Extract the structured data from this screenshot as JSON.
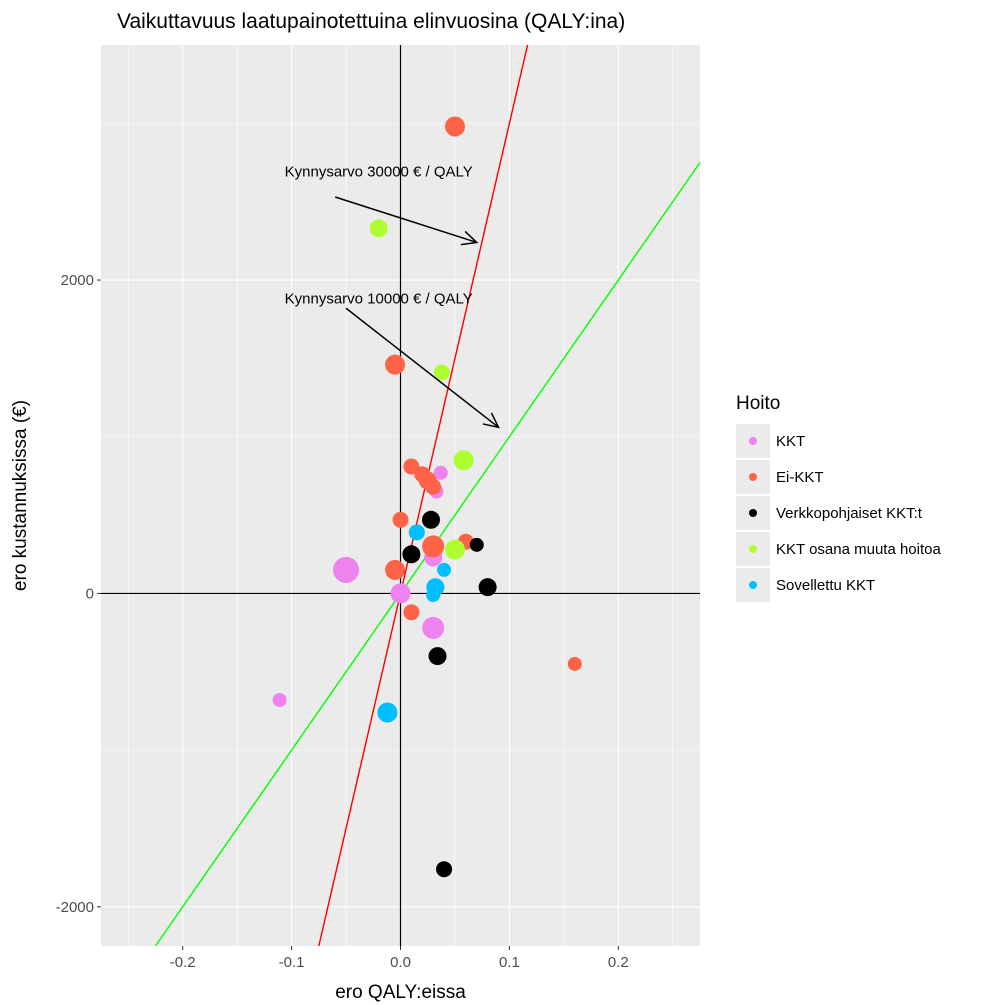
{
  "chart_data": {
    "type": "scatter",
    "title": "Vaikuttavuus laatupainotettuina elinvuosina (QALY:ina)",
    "xlabel": "ero QALY:eissa",
    "ylabel": "ero kustannuksissa (€)",
    "xlim": [
      -0.275,
      0.275
    ],
    "ylim": [
      -2250,
      3500
    ],
    "x_ticks": [
      -0.2,
      -0.1,
      0.0,
      0.1,
      0.2
    ],
    "x_tick_labels": [
      "-0.2",
      "-0.1",
      "0.0",
      "0.1",
      "0.2"
    ],
    "y_ticks": [
      -2000,
      0,
      2000
    ],
    "y_tick_labels": [
      "-2000",
      "0",
      "2000"
    ],
    "grid": true,
    "legend_position": "right",
    "background": "#ebebeb",
    "legend_title": "Hoito",
    "series": [
      {
        "name": "KKT",
        "color": "#ee82ee",
        "points": [
          {
            "x": -0.111,
            "y": -680,
            "size": 7
          },
          {
            "x": -0.05,
            "y": 150,
            "size": 13
          },
          {
            "x": 0.0,
            "y": 0,
            "size": 10
          },
          {
            "x": 0.03,
            "y": -220,
            "size": 11
          },
          {
            "x": 0.03,
            "y": 230,
            "size": 9
          },
          {
            "x": 0.037,
            "y": 770,
            "size": 7
          },
          {
            "x": 0.033,
            "y": 650,
            "size": 7
          }
        ]
      },
      {
        "name": "Ei-KKT",
        "color": "#ff6347",
        "points": [
          {
            "x": 0.05,
            "y": 2980,
            "size": 10
          },
          {
            "x": -0.005,
            "y": 1460,
            "size": 10
          },
          {
            "x": 0.01,
            "y": 810,
            "size": 8
          },
          {
            "x": 0.02,
            "y": 760,
            "size": 8
          },
          {
            "x": 0.025,
            "y": 720,
            "size": 9
          },
          {
            "x": 0.03,
            "y": 680,
            "size": 8
          },
          {
            "x": 0.0,
            "y": 470,
            "size": 8
          },
          {
            "x": -0.005,
            "y": 150,
            "size": 10
          },
          {
            "x": 0.03,
            "y": 300,
            "size": 11
          },
          {
            "x": 0.06,
            "y": 330,
            "size": 8
          },
          {
            "x": 0.01,
            "y": -120,
            "size": 8
          },
          {
            "x": 0.16,
            "y": -450,
            "size": 7
          }
        ]
      },
      {
        "name": "Verkkopohjaiset KKT:t",
        "color": "#000000",
        "points": [
          {
            "x": 0.028,
            "y": 470,
            "size": 9
          },
          {
            "x": 0.07,
            "y": 310,
            "size": 7
          },
          {
            "x": 0.01,
            "y": 250,
            "size": 9
          },
          {
            "x": 0.08,
            "y": 40,
            "size": 9
          },
          {
            "x": 0.034,
            "y": -400,
            "size": 9
          },
          {
            "x": 0.04,
            "y": -1760,
            "size": 8
          }
        ]
      },
      {
        "name": "KKT osana muuta hoitoa",
        "color": "#adff2f",
        "points": [
          {
            "x": -0.02,
            "y": 2330,
            "size": 9
          },
          {
            "x": 0.038,
            "y": 1410,
            "size": 8
          },
          {
            "x": 0.058,
            "y": 850,
            "size": 10
          },
          {
            "x": 0.05,
            "y": 280,
            "size": 10
          }
        ]
      },
      {
        "name": "Sovellettu KKT",
        "color": "#00bfff",
        "points": [
          {
            "x": 0.015,
            "y": 390,
            "size": 8
          },
          {
            "x": 0.04,
            "y": 150,
            "size": 7
          },
          {
            "x": 0.032,
            "y": 40,
            "size": 9
          },
          {
            "x": 0.03,
            "y": -10,
            "size": 7
          },
          {
            "x": -0.012,
            "y": -760,
            "size": 10
          }
        ]
      }
    ],
    "reference_lines": [
      {
        "label": "Kynnysarvo 30000 € / QALY",
        "slope": 30000,
        "color": "#ff0000"
      },
      {
        "label": "Kynnysarvo 10000 € / QALY",
        "slope": 10000,
        "color": "#00ff00"
      }
    ],
    "annotations": [
      {
        "text": "Kynnysarvo 30000 € / QALY",
        "text_x": -0.02,
        "text_y": 2660,
        "arrow_from": [
          -0.06,
          2530
        ],
        "arrow_to": [
          0.07,
          2240
        ]
      },
      {
        "text": "Kynnysarvo 10000 € / QALY",
        "text_x": -0.02,
        "text_y": 1850,
        "arrow_from": [
          -0.05,
          1820
        ],
        "arrow_to": [
          0.09,
          1060
        ]
      }
    ]
  }
}
